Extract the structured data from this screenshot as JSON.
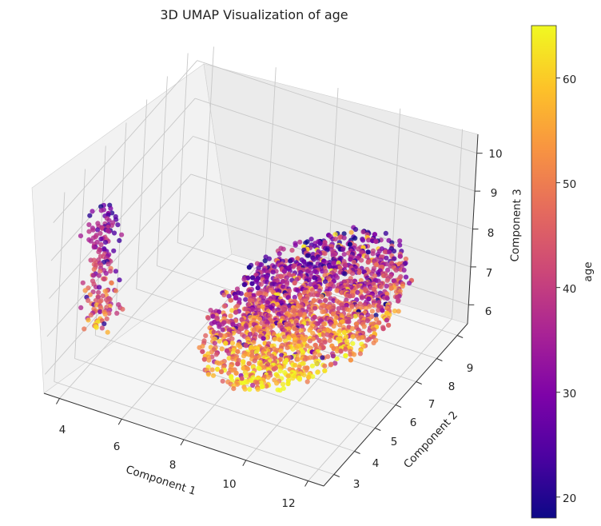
{
  "chart_data": {
    "type": "scatter",
    "projection": "3d",
    "title": "3D UMAP Visualization of age",
    "xlabel": "Component 1",
    "ylabel": "Component 2",
    "zlabel": "Component 3",
    "xlim": [
      3.5,
      12.5
    ],
    "ylim": [
      2.5,
      9.5
    ],
    "zlim": [
      5.5,
      10.5
    ],
    "xticks": [
      "4",
      "6",
      "8",
      "10",
      "12"
    ],
    "yticks": [
      "3",
      "4",
      "5",
      "6",
      "7",
      "8",
      "9"
    ],
    "zticks": [
      "6",
      "7",
      "8",
      "9",
      "10"
    ],
    "colorbar": {
      "label": "age",
      "range": [
        18,
        65
      ],
      "ticks": [
        "20",
        "30",
        "40",
        "50",
        "60"
      ],
      "colormap": "plasma"
    },
    "clusters": [
      {
        "description_values": "small elongated cluster",
        "center": [
          4.5,
          3.5,
          8.5
        ],
        "approx_points": 180,
        "extent": {
          "x": [
            4.0,
            5.2
          ],
          "y": [
            3.0,
            4.2
          ],
          "z": [
            7.0,
            10.0
          ]
        },
        "age_range": [
          20,
          62
        ]
      },
      {
        "description_values": "large ellipsoidal cluster",
        "center": [
          9.5,
          6.0,
          7.2
        ],
        "approx_points": 2200,
        "extent": {
          "x": [
            6.5,
            12.0
          ],
          "y": [
            3.0,
            9.0
          ],
          "z": [
            5.8,
            9.0
          ]
        },
        "age_range": [
          18,
          65
        ]
      }
    ],
    "grid": true
  }
}
